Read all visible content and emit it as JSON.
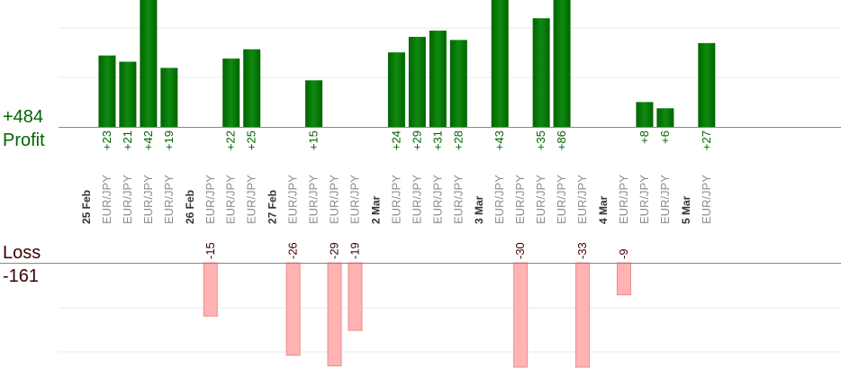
{
  "summary": {
    "profit_label": "Profit",
    "profit_total": "+484",
    "loss_label": "Loss",
    "loss_total": "-161"
  },
  "colors": {
    "profit_bar": "#006400",
    "profit_bar_light": "#0f8a0f",
    "profit_text": "#006400",
    "loss_bar": "#ffb3b3",
    "loss_bar_edge": "#ee8c8c",
    "loss_text": "#3a0000",
    "date_text": "#333333",
    "pair_text": "#8c8c8c",
    "axis": "#888888",
    "grid": "#e8e8e8"
  },
  "chart_data": {
    "type": "bar",
    "title": "",
    "xlabel": "",
    "ylabel": "",
    "profit_total": 484,
    "loss_total": -161,
    "dates": [
      "25 Feb",
      "26 Feb",
      "27 Feb",
      "2 Mar",
      "3 Mar",
      "4 Mar",
      "5 Mar"
    ],
    "slots": [
      {
        "kind": "date",
        "label": "25 Feb"
      },
      {
        "kind": "trade",
        "pair": "EUR/JPY",
        "value": 23,
        "label": "+23"
      },
      {
        "kind": "trade",
        "pair": "EUR/JPY",
        "value": 21,
        "label": "+21"
      },
      {
        "kind": "trade",
        "pair": "EUR/JPY",
        "value": 42,
        "label": "+42"
      },
      {
        "kind": "trade",
        "pair": "EUR/JPY",
        "value": 19,
        "label": "+19"
      },
      {
        "kind": "date",
        "label": "26 Feb"
      },
      {
        "kind": "trade",
        "pair": "EUR/JPY",
        "value": -15,
        "label": "-15"
      },
      {
        "kind": "trade",
        "pair": "EUR/JPY",
        "value": 22,
        "label": "+22"
      },
      {
        "kind": "trade",
        "pair": "EUR/JPY",
        "value": 25,
        "label": "+25"
      },
      {
        "kind": "date",
        "label": "27 Feb"
      },
      {
        "kind": "trade",
        "pair": "EUR/JPY",
        "value": -26,
        "label": "-26"
      },
      {
        "kind": "trade",
        "pair": "EUR/JPY",
        "value": 15,
        "label": "+15"
      },
      {
        "kind": "trade",
        "pair": "EUR/JPY",
        "value": -29,
        "label": "-29"
      },
      {
        "kind": "trade",
        "pair": "EUR/JPY",
        "value": -19,
        "label": "-19"
      },
      {
        "kind": "date",
        "label": "2 Mar"
      },
      {
        "kind": "trade",
        "pair": "EUR/JPY",
        "value": 24,
        "label": "+24"
      },
      {
        "kind": "trade",
        "pair": "EUR/JPY",
        "value": 29,
        "label": "+29"
      },
      {
        "kind": "trade",
        "pair": "EUR/JPY",
        "value": 31,
        "label": "+31"
      },
      {
        "kind": "trade",
        "pair": "EUR/JPY",
        "value": 28,
        "label": "+28"
      },
      {
        "kind": "date",
        "label": "3 Mar"
      },
      {
        "kind": "trade",
        "pair": "EUR/JPY",
        "value": 43,
        "label": "+43"
      },
      {
        "kind": "trade",
        "pair": "EUR/JPY",
        "value": -30,
        "label": "-30"
      },
      {
        "kind": "trade",
        "pair": "EUR/JPY",
        "value": 35,
        "label": "+35"
      },
      {
        "kind": "trade",
        "pair": "EUR/JPY",
        "value": 86,
        "label": "+86"
      },
      {
        "kind": "trade",
        "pair": "EUR/JPY",
        "value": -33,
        "label": "-33"
      },
      {
        "kind": "date",
        "label": "4 Mar"
      },
      {
        "kind": "trade",
        "pair": "EUR/JPY",
        "value": -9,
        "label": "-9"
      },
      {
        "kind": "trade",
        "pair": "EUR/JPY",
        "value": 8,
        "label": "+8"
      },
      {
        "kind": "trade",
        "pair": "EUR/JPY",
        "value": 6,
        "label": "+6"
      },
      {
        "kind": "date",
        "label": "5 Mar"
      },
      {
        "kind": "trade",
        "pair": "EUR/JPY",
        "value": 27,
        "label": "+27"
      }
    ]
  }
}
